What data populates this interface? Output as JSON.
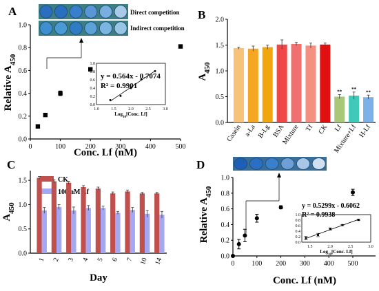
{
  "colors": {
    "ck_red": "#c0504d",
    "lf_blue": "#a4a8f2",
    "well_blue": "#2a6fbf",
    "strip_bg": "#3d7d84",
    "bar_casein": "#f7c27a",
    "bar_ala": "#f5a623",
    "bar_blg": "#f2a60d",
    "bar_bsa": "#f04848",
    "bar_mixture": "#f07070",
    "bar_tf": "#f59080",
    "bar_ck": "#e01010",
    "bar_lf": "#a8c878",
    "bar_mixlf": "#40c8b8",
    "bar_hlf": "#7cb0e8"
  },
  "panels": {
    "a": {
      "letter": "A",
      "label_direct": "Direct competition",
      "label_indirect": "Indirect competition"
    },
    "b": {
      "letter": "B"
    },
    "c": {
      "letter": "C"
    },
    "d": {
      "letter": "D"
    }
  },
  "chart_data": [
    {
      "id": "A",
      "type": "scatter",
      "xlabel": "Conc. Lf (nM)",
      "ylabel": "Relative A450",
      "xlim": [
        0,
        500
      ],
      "ylim": [
        0.0,
        1.0
      ],
      "xticks": [
        0,
        100,
        200,
        300,
        400,
        500
      ],
      "yticks": [
        0.0,
        0.2,
        0.4,
        0.6,
        0.8,
        1.0
      ],
      "points": [
        {
          "x": 25,
          "y": 0.11
        },
        {
          "x": 50,
          "y": 0.21
        },
        {
          "x": 100,
          "y": 0.4,
          "err": 0.02
        },
        {
          "x": 200,
          "y": 0.61
        },
        {
          "x": 500,
          "y": 0.81
        }
      ],
      "inset": {
        "type": "scatter",
        "xlabel": "Log10[Conc. Lf]",
        "xlim": [
          1.0,
          3.0
        ],
        "ylim": [
          0.0,
          1.0
        ],
        "xticks": [
          1.0,
          1.5,
          2.0,
          2.5,
          3.0
        ],
        "yticks": [
          0.0,
          0.2,
          0.4,
          0.6,
          0.8,
          1.0
        ],
        "points": [
          {
            "x": 1.4,
            "y": 0.11
          },
          {
            "x": 1.7,
            "y": 0.21
          },
          {
            "x": 2.0,
            "y": 0.4
          },
          {
            "x": 2.3,
            "y": 0.61
          },
          {
            "x": 2.7,
            "y": 0.81
          }
        ],
        "equation": "y = 0.564x - 0.7074",
        "r2": "R² = 0.9901"
      }
    },
    {
      "id": "B",
      "type": "bar",
      "ylabel": "A450",
      "ylim": [
        0.0,
        2.0
      ],
      "yticks": [
        0.0,
        0.5,
        1.0,
        1.5,
        2.0
      ],
      "categories": [
        "Casein",
        "a-La",
        "B-Lg",
        "BSA",
        "Mixture",
        "Tf",
        "CK",
        "Lf",
        "Mixture+Lf",
        "H-Lf"
      ],
      "values": [
        1.44,
        1.43,
        1.46,
        1.51,
        1.52,
        1.49,
        1.51,
        0.5,
        0.52,
        0.49
      ],
      "errors": [
        0.02,
        0.05,
        0.04,
        0.09,
        0.03,
        0.05,
        0.03,
        0.04,
        0.07,
        0.04
      ],
      "significance": [
        "",
        "",
        "",
        "",
        "",
        "",
        "",
        "**",
        "**",
        "**"
      ]
    },
    {
      "id": "C",
      "type": "bar",
      "xlabel": "Day",
      "ylabel": "A450",
      "ylim": [
        0.0,
        1.7
      ],
      "yticks": [
        0.0,
        0.5,
        1.0,
        1.5
      ],
      "categories": [
        "1",
        "2",
        "3",
        "4",
        "5",
        "6",
        "7",
        "10",
        "14"
      ],
      "legend_position": "top-left",
      "series": [
        {
          "name": "CK",
          "values": [
            1.55,
            1.48,
            1.45,
            1.36,
            1.33,
            1.23,
            1.27,
            1.23,
            1.23
          ],
          "errors": [
            0.03,
            0.03,
            0.03,
            0.03,
            0.03,
            0.03,
            0.03,
            0.02,
            0.02
          ]
        },
        {
          "name": "100 nM Lf",
          "values": [
            0.88,
            0.95,
            0.88,
            0.93,
            0.93,
            0.83,
            0.89,
            0.81,
            0.79
          ],
          "errors": [
            0.06,
            0.05,
            0.07,
            0.05,
            0.04,
            0.03,
            0.05,
            0.07,
            0.07
          ]
        }
      ]
    },
    {
      "id": "D",
      "type": "scatter",
      "xlabel": "Conc. Lf (nM)",
      "ylabel": "Relative A450",
      "xlim": [
        0,
        500
      ],
      "ylim": [
        0.0,
        1.0
      ],
      "xticks": [
        0,
        100,
        200,
        300,
        400,
        500
      ],
      "yticks": [
        0.0,
        0.2,
        0.4,
        0.6,
        0.8,
        1.0
      ],
      "points": [
        {
          "x": 0,
          "y": 0.0
        },
        {
          "x": 25,
          "y": 0.15,
          "err": 0.06
        },
        {
          "x": 50,
          "y": 0.26,
          "err": 0.08
        },
        {
          "x": 100,
          "y": 0.48,
          "err": 0.05
        },
        {
          "x": 200,
          "y": 0.62,
          "err": 0.02
        },
        {
          "x": 500,
          "y": 0.81,
          "err": 0.04
        }
      ],
      "inset": {
        "type": "scatter",
        "xlabel": "Log10[Conc. Lf]",
        "xlim": [
          1.5,
          3.0
        ],
        "ylim": [
          0.0,
          1.0
        ],
        "xticks": [
          1.5,
          2.0,
          2.5,
          3.0
        ],
        "yticks": [
          0.0,
          0.2,
          0.4,
          0.6,
          0.8,
          1.0
        ],
        "points": [
          {
            "x": 1.4,
            "y": 0.15,
            "err": 0.06
          },
          {
            "x": 1.7,
            "y": 0.26,
            "err": 0.06
          },
          {
            "x": 2.0,
            "y": 0.48,
            "err": 0.04
          },
          {
            "x": 2.3,
            "y": 0.62,
            "err": 0.02
          },
          {
            "x": 2.7,
            "y": 0.81,
            "err": 0.03
          }
        ],
        "equation": "y = 0.5299x - 0.6062",
        "r2": "R² = 0.9938"
      }
    }
  ]
}
